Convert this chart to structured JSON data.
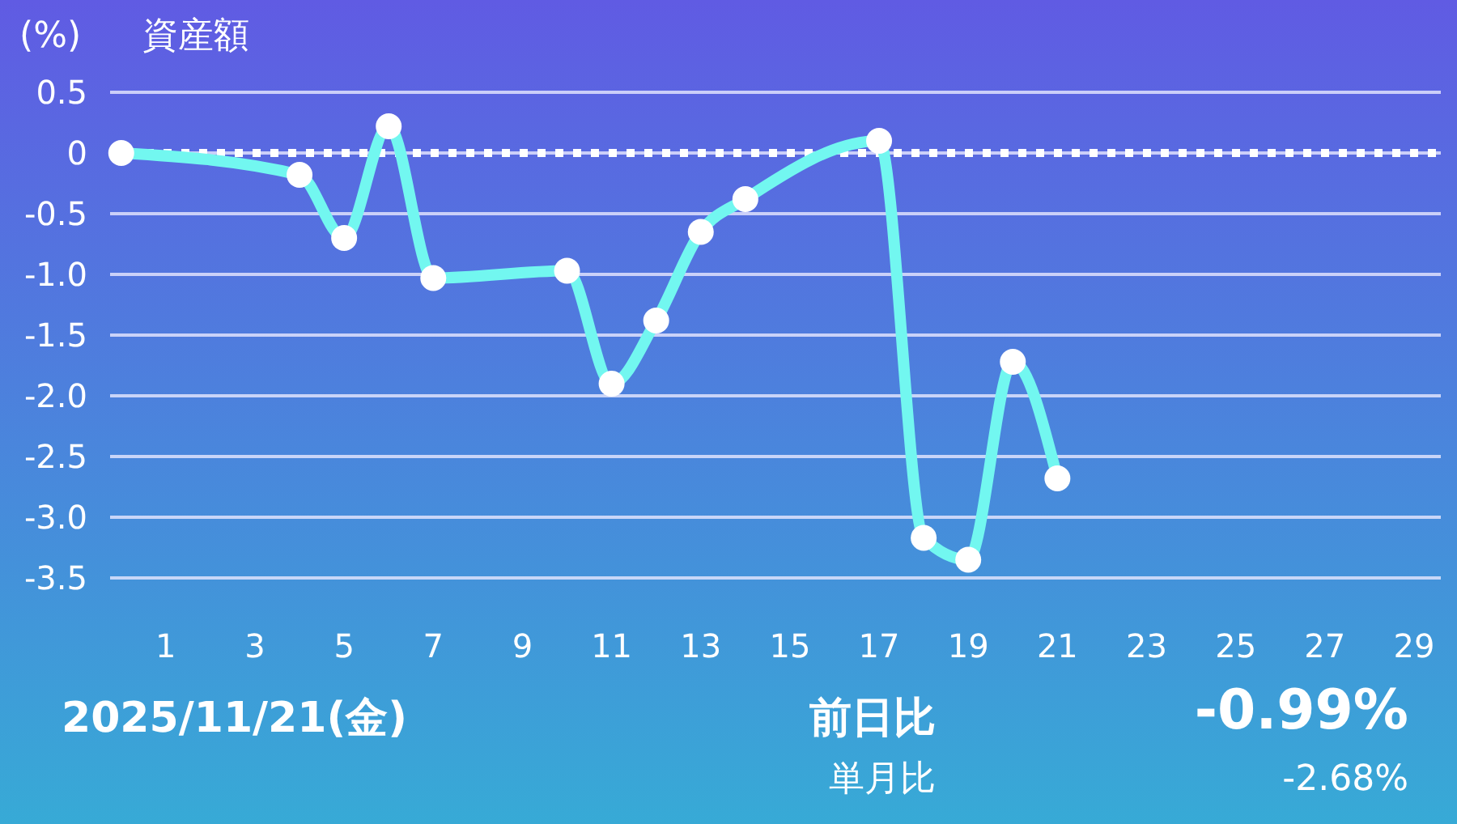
{
  "chart_data": {
    "type": "line",
    "title": "資産額",
    "ylabel": "(%)",
    "x": [
      0,
      4,
      5,
      6,
      7,
      10,
      11,
      12,
      13,
      14,
      17,
      18,
      19,
      20,
      21
    ],
    "series": [
      {
        "color": "#72f7f0",
        "values": [
          0,
          -0.18,
          -0.7,
          0.22,
          -1.03,
          -0.97,
          -1.9,
          -1.38,
          -0.65,
          -0.38,
          0.1,
          -3.17,
          -3.35,
          -1.72,
          -2.68
        ]
      }
    ],
    "xlim": [
      -0.25,
      29.6
    ],
    "xticks": [
      1,
      3,
      5,
      7,
      9,
      11,
      13,
      15,
      17,
      19,
      21,
      23,
      25,
      27,
      29
    ],
    "ylim": [
      -3.5,
      0.5
    ],
    "yticks": [
      0.5,
      0,
      -0.5,
      {
        "value": -1,
        "label": "-1.0"
      },
      -1.5,
      {
        "value": -2,
        "label": "-2.0"
      },
      -2.5,
      {
        "value": -3,
        "label": "-3.0"
      },
      -3.5
    ],
    "grid": "y",
    "marker": "circle",
    "line_style": "solid",
    "ref_lines": [
      {
        "axis": "y",
        "value": 0,
        "color": "#ffffff",
        "line_style": "dotted"
      }
    ],
    "annotations": [
      "2025/11/21(金)",
      "前日比",
      "単月比",
      "-0.99%",
      "-2.68%"
    ]
  }
}
